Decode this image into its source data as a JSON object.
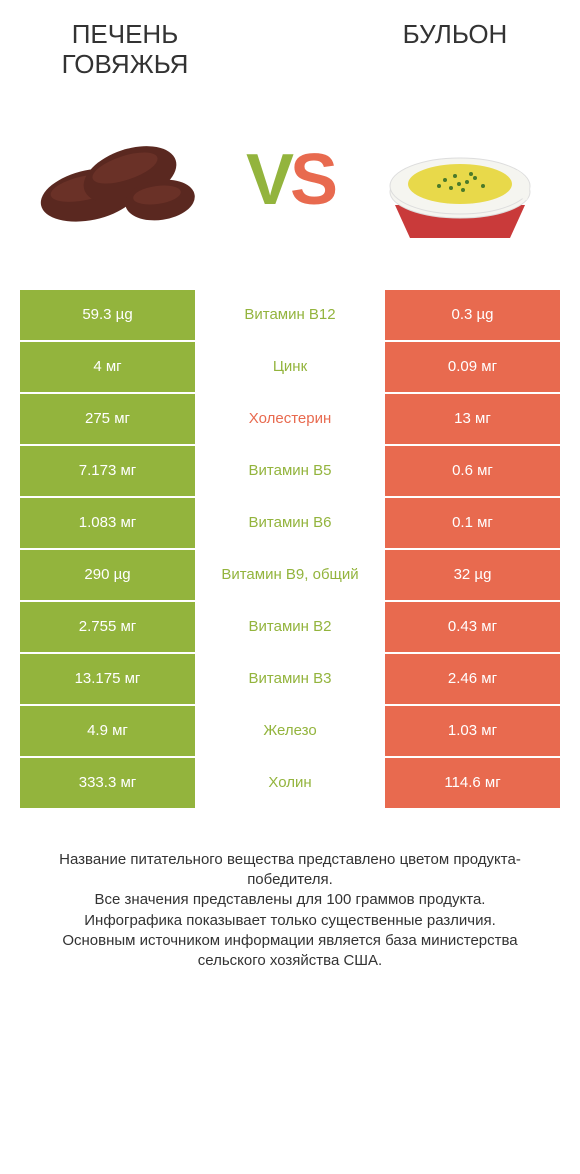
{
  "header": {
    "left": "ПЕЧЕНЬ ГОВЯЖЬЯ",
    "right": "БУЛЬОН"
  },
  "vs": {
    "v": "V",
    "s": "S"
  },
  "colors": {
    "green": "#93b43d",
    "orange": "#e86a4f",
    "text": "#333333",
    "bg": "#ffffff"
  },
  "rows": [
    {
      "left": "59.3 µg",
      "mid": "Витамин B12",
      "right": "0.3 µg",
      "winner": "left"
    },
    {
      "left": "4 мг",
      "mid": "Цинк",
      "right": "0.09 мг",
      "winner": "left"
    },
    {
      "left": "275 мг",
      "mid": "Холестерин",
      "right": "13 мг",
      "winner": "right"
    },
    {
      "left": "7.173 мг",
      "mid": "Витамин B5",
      "right": "0.6 мг",
      "winner": "left"
    },
    {
      "left": "1.083 мг",
      "mid": "Витамин B6",
      "right": "0.1 мг",
      "winner": "left"
    },
    {
      "left": "290 µg",
      "mid": "Витамин B9, общий",
      "right": "32 µg",
      "winner": "left"
    },
    {
      "left": "2.755 мг",
      "mid": "Витамин B2",
      "right": "0.43 мг",
      "winner": "left"
    },
    {
      "left": "13.175 мг",
      "mid": "Витамин B3",
      "right": "2.46 мг",
      "winner": "left"
    },
    {
      "left": "4.9 мг",
      "mid": "Железо",
      "right": "1.03 мг",
      "winner": "left"
    },
    {
      "left": "333.3 мг",
      "mid": "Холин",
      "right": "114.6 мг",
      "winner": "left"
    }
  ],
  "footer": {
    "l1": "Название питательного вещества представлено цветом продукта-победителя.",
    "l2": "Все значения представлены для 100 граммов продукта.",
    "l3": "Инфографика показывает только существенные различия.",
    "l4": "Основным источником информации является база министерства сельского хозяйства США."
  }
}
